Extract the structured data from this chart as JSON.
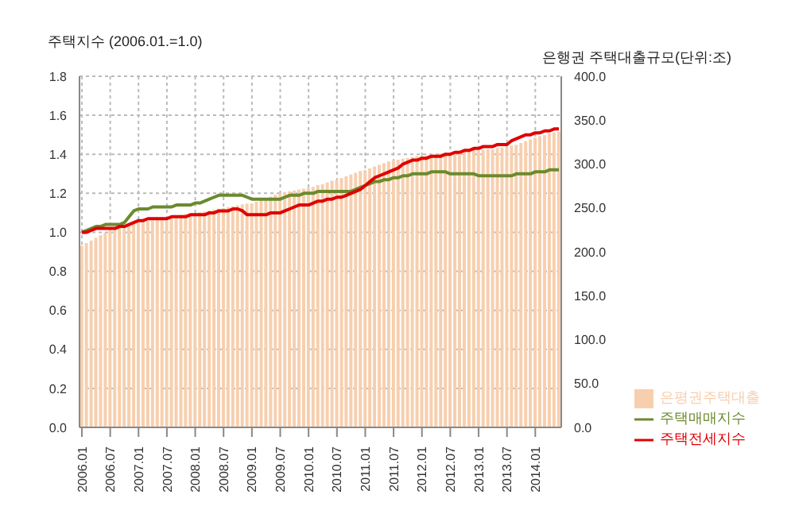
{
  "chart_data": {
    "type": "bar",
    "ylabel": "주택지수 (2006.01.=1.0)",
    "y2label": "은행권 주택대출규모(단위:조)",
    "categories": [
      "2006.01",
      null,
      null,
      null,
      null,
      null,
      "2006.07",
      null,
      null,
      null,
      null,
      null,
      "2007.01",
      null,
      null,
      null,
      null,
      null,
      "2007.07",
      null,
      null,
      null,
      null,
      null,
      "2008.01",
      null,
      null,
      null,
      null,
      null,
      "2008.07",
      null,
      null,
      null,
      null,
      null,
      "2009.01",
      null,
      null,
      null,
      null,
      null,
      "2009.07",
      null,
      null,
      null,
      null,
      null,
      "2010.01",
      null,
      null,
      null,
      null,
      null,
      "2010.07",
      null,
      null,
      null,
      null,
      null,
      "2011.01",
      null,
      null,
      null,
      null,
      null,
      "2011.07",
      null,
      null,
      null,
      null,
      null,
      "2012.01",
      null,
      null,
      null,
      null,
      null,
      "2012.07",
      null,
      null,
      null,
      null,
      null,
      "2013.01",
      null,
      null,
      null,
      null,
      null,
      "2013.07",
      null,
      null,
      null,
      null,
      null,
      "2014.01",
      null,
      null,
      null,
      null,
      null
    ],
    "series": [
      {
        "name": "은평권주택대출",
        "axis": "y2",
        "color": "#f7cfae",
        "values": [
          207,
          210,
          213,
          216,
          219,
          222,
          224,
          226,
          228,
          230,
          231,
          233,
          233,
          234,
          235,
          236,
          237,
          238,
          239,
          240,
          241,
          242,
          243,
          244,
          244,
          245,
          246,
          247,
          248,
          249,
          250,
          251,
          252,
          253,
          254,
          255,
          255,
          257,
          259,
          261,
          263,
          265,
          267,
          268,
          269,
          270,
          271,
          272,
          273,
          274,
          276,
          277,
          279,
          281,
          282,
          284,
          286,
          288,
          290,
          292,
          293,
          295,
          297,
          299,
          301,
          303,
          304,
          305,
          306,
          307,
          308,
          309,
          310,
          310,
          311,
          311,
          312,
          313,
          313,
          314,
          314,
          315,
          315,
          316,
          316,
          316,
          317,
          317,
          318,
          319,
          320,
          321,
          322,
          324,
          326,
          328,
          330,
          332,
          333,
          335,
          336,
          337
        ]
      },
      {
        "name": "주택매매지수",
        "type": "line",
        "color": "#6b8a2e",
        "values": [
          1.0,
          1.01,
          1.02,
          1.03,
          1.03,
          1.04,
          1.04,
          1.04,
          1.04,
          1.05,
          1.08,
          1.11,
          1.12,
          1.12,
          1.12,
          1.13,
          1.13,
          1.13,
          1.13,
          1.13,
          1.14,
          1.14,
          1.14,
          1.14,
          1.15,
          1.15,
          1.16,
          1.17,
          1.18,
          1.19,
          1.19,
          1.19,
          1.19,
          1.19,
          1.19,
          1.18,
          1.17,
          1.17,
          1.17,
          1.17,
          1.17,
          1.17,
          1.17,
          1.18,
          1.19,
          1.19,
          1.19,
          1.2,
          1.2,
          1.2,
          1.21,
          1.21,
          1.21,
          1.21,
          1.21,
          1.21,
          1.21,
          1.21,
          1.22,
          1.23,
          1.24,
          1.25,
          1.26,
          1.26,
          1.27,
          1.27,
          1.28,
          1.28,
          1.29,
          1.29,
          1.3,
          1.3,
          1.3,
          1.3,
          1.31,
          1.31,
          1.31,
          1.31,
          1.3,
          1.3,
          1.3,
          1.3,
          1.3,
          1.3,
          1.29,
          1.29,
          1.29,
          1.29,
          1.29,
          1.29,
          1.29,
          1.29,
          1.3,
          1.3,
          1.3,
          1.3,
          1.31,
          1.31,
          1.31,
          1.32,
          1.32,
          1.32
        ]
      },
      {
        "name": "주택전세지수",
        "type": "line",
        "color": "#e00000",
        "values": [
          1.0,
          1.0,
          1.01,
          1.02,
          1.02,
          1.02,
          1.02,
          1.02,
          1.03,
          1.03,
          1.04,
          1.05,
          1.06,
          1.06,
          1.07,
          1.07,
          1.07,
          1.07,
          1.07,
          1.08,
          1.08,
          1.08,
          1.08,
          1.09,
          1.09,
          1.09,
          1.09,
          1.1,
          1.1,
          1.11,
          1.11,
          1.11,
          1.12,
          1.12,
          1.11,
          1.09,
          1.09,
          1.09,
          1.09,
          1.09,
          1.1,
          1.1,
          1.1,
          1.11,
          1.12,
          1.13,
          1.14,
          1.14,
          1.14,
          1.15,
          1.16,
          1.16,
          1.17,
          1.17,
          1.18,
          1.18,
          1.19,
          1.2,
          1.21,
          1.22,
          1.24,
          1.26,
          1.28,
          1.29,
          1.3,
          1.31,
          1.32,
          1.33,
          1.35,
          1.36,
          1.37,
          1.37,
          1.38,
          1.38,
          1.39,
          1.39,
          1.39,
          1.4,
          1.4,
          1.41,
          1.41,
          1.42,
          1.42,
          1.43,
          1.43,
          1.44,
          1.44,
          1.44,
          1.45,
          1.45,
          1.45,
          1.47,
          1.48,
          1.49,
          1.5,
          1.5,
          1.51,
          1.51,
          1.52,
          1.52,
          1.53,
          1.53
        ]
      }
    ],
    "ylim": [
      0,
      1.8
    ],
    "yticks": [
      {
        "value": 0,
        "label": "0.0"
      },
      0.2,
      0.4,
      0.6,
      0.8,
      {
        "value": 1,
        "label": "1.0"
      },
      1.2,
      1.4,
      1.6,
      1.8
    ],
    "y2lim": [
      0,
      400
    ],
    "y2ticks": [
      {
        "value": 0,
        "label": "0.0"
      },
      {
        "value": 50,
        "label": "50.0"
      },
      {
        "value": 100,
        "label": "100.0"
      },
      {
        "value": 150,
        "label": "150.0"
      },
      {
        "value": 200,
        "label": "200.0"
      },
      {
        "value": 250,
        "label": "250.0"
      },
      {
        "value": 300,
        "label": "300.0"
      },
      {
        "value": 350,
        "label": "350.0"
      },
      {
        "value": 400,
        "label": "400.0"
      }
    ],
    "grid": true,
    "legend": "bottom right",
    "line_style": "solid"
  }
}
